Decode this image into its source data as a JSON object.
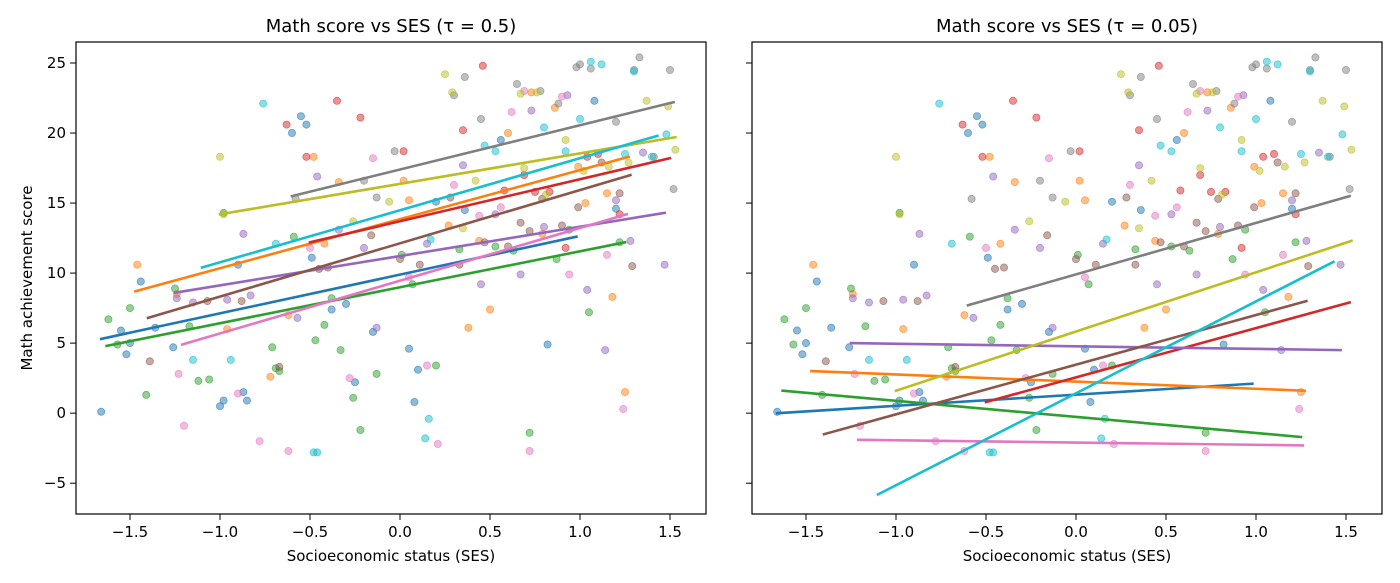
{
  "chart_data": [
    {
      "type": "scatter",
      "title": "Math score vs SES (τ = 0.5)",
      "xlabel": "Socioeconomic status (SES)",
      "ylabel": "Math achievement score",
      "xlim": [
        -1.8,
        1.7
      ],
      "ylim": [
        -7.2,
        26.5
      ],
      "xticks": [
        -1.5,
        -1.0,
        -0.5,
        0.0,
        0.5,
        1.0,
        1.5
      ],
      "xtick_labels": [
        "−1.5",
        "−1.0",
        "−0.5",
        "0.0",
        "0.5",
        "1.0",
        "1.5"
      ],
      "yticks": [
        -5,
        0,
        5,
        10,
        15,
        20,
        25
      ],
      "ytick_labels": [
        "−5",
        "0",
        "5",
        "10",
        "15",
        "20",
        "25"
      ],
      "grid": false,
      "series": [
        {
          "color": "#1f77b4",
          "x": [
            -1.66,
            -1.55,
            -1.52,
            -1.5,
            -1.44,
            -1.36,
            -1.26,
            -1.0,
            -0.98,
            -0.9,
            -0.87,
            -0.85,
            -0.6,
            -0.55,
            -0.52,
            -0.49,
            -0.38,
            -0.3,
            -0.25,
            -0.15,
            0.05,
            0.08,
            0.1,
            0.2,
            0.36,
            0.56,
            0.82,
            1.08,
            1.2
          ],
          "y": [
            0.1,
            5.9,
            4.2,
            5.0,
            9.4,
            6.1,
            4.7,
            0.5,
            0.9,
            10.6,
            1.5,
            0.9,
            20.0,
            21.2,
            20.6,
            11.1,
            7.4,
            7.8,
            2.2,
            5.8,
            4.6,
            0.8,
            3.1,
            15.1,
            14.5,
            19.5,
            4.9,
            22.3,
            14.6
          ],
          "line": {
            "x": [
              -1.66,
              0.98
            ],
            "y": [
              5.3,
              12.6
            ]
          }
        },
        {
          "color": "#ff7f0e",
          "x": [
            -1.46,
            -1.24,
            -0.96,
            -0.72,
            -0.62,
            -0.48,
            -0.42,
            -0.34,
            0.02,
            0.05,
            0.27,
            0.38,
            0.44,
            0.5,
            0.6,
            0.73,
            0.79,
            0.86,
            0.99,
            1.03,
            1.15,
            1.18,
            1.25
          ],
          "y": [
            10.6,
            8.5,
            6.0,
            2.6,
            7.0,
            18.3,
            12.1,
            16.5,
            16.6,
            15.2,
            13.4,
            6.1,
            12.3,
            7.4,
            20.0,
            22.9,
            12.8,
            21.8,
            17.6,
            15.0,
            15.7,
            8.3,
            1.5
          ],
          "line": {
            "x": [
              -1.47,
              1.27
            ],
            "y": [
              8.7,
              18.3
            ]
          }
        },
        {
          "color": "#2ca02c",
          "x": [
            -1.62,
            -1.57,
            -1.5,
            -1.41,
            -1.25,
            -1.17,
            -1.12,
            -1.06,
            -0.98,
            -0.71,
            -0.69,
            -0.67,
            -0.59,
            -0.47,
            -0.42,
            -0.38,
            -0.33,
            -0.26,
            -0.22,
            -0.13,
            0.01,
            0.07,
            0.2,
            0.33,
            0.53,
            0.63,
            0.72,
            0.87,
            0.94,
            1.05,
            1.22
          ],
          "y": [
            6.7,
            4.9,
            7.5,
            1.3,
            8.9,
            6.2,
            2.3,
            2.4,
            14.3,
            4.7,
            3.2,
            3.0,
            12.6,
            5.2,
            6.3,
            8.2,
            4.5,
            1.1,
            -1.2,
            2.8,
            11.3,
            9.2,
            3.4,
            11.7,
            11.9,
            11.6,
            -1.4,
            11.0,
            13.1,
            7.2,
            12.2
          ],
          "line": {
            "x": [
              -1.63,
              1.25
            ],
            "y": [
              4.8,
              12.2
            ]
          }
        },
        {
          "color": "#d62728",
          "x": [
            -0.63,
            -0.52,
            -0.35,
            -0.22,
            0.02,
            0.35,
            0.46,
            0.58,
            0.69,
            0.75,
            0.83,
            0.92,
            1.04,
            1.1,
            1.22
          ],
          "y": [
            20.6,
            18.3,
            22.3,
            21.1,
            18.7,
            20.2,
            24.8,
            15.9,
            17.0,
            15.8,
            15.8,
            11.8,
            18.3,
            18.5,
            14.2
          ],
          "line": {
            "x": [
              -0.5,
              1.5
            ],
            "y": [
              12.2,
              18.2
            ]
          }
        },
        {
          "color": "#9467bd",
          "x": [
            -1.24,
            -1.15,
            -0.96,
            -0.87,
            -0.83,
            -0.57,
            -0.46,
            -0.34,
            -0.2,
            -0.13,
            0.15,
            0.35,
            0.45,
            0.53,
            0.67,
            0.73,
            0.8,
            0.93,
            1.04,
            1.14,
            1.2,
            1.28,
            1.35,
            1.47
          ],
          "y": [
            8.2,
            7.9,
            8.1,
            12.8,
            8.4,
            6.8,
            16.9,
            13.1,
            11.8,
            6.1,
            12.1,
            17.7,
            9.2,
            14.2,
            9.9,
            21.6,
            13.3,
            22.7,
            8.8,
            4.5,
            15.2,
            12.3,
            18.6,
            10.6
          ],
          "line": {
            "x": [
              -1.25,
              1.47
            ],
            "y": [
              8.6,
              14.3
            ]
          }
        },
        {
          "color": "#8c564b",
          "x": [
            -1.39,
            -1.07,
            -0.88,
            -0.67,
            -0.45,
            -0.4,
            -0.16,
            0.0,
            0.11,
            0.28,
            0.33,
            0.47,
            0.6,
            0.67,
            0.72,
            0.79,
            0.9,
            0.99,
            1.12,
            1.22,
            1.29
          ],
          "y": [
            3.7,
            8.0,
            8.0,
            3.3,
            10.3,
            10.4,
            12.7,
            11.0,
            10.6,
            15.4,
            10.6,
            12.2,
            11.9,
            13.6,
            13.0,
            15.3,
            13.4,
            14.7,
            17.9,
            15.7,
            10.5
          ],
          "line": {
            "x": [
              -1.4,
              1.28
            ],
            "y": [
              6.8,
              17.0
            ]
          }
        },
        {
          "color": "#e377c2",
          "x": [
            -1.23,
            -1.2,
            -0.9,
            -0.78,
            -0.62,
            -0.5,
            -0.28,
            -0.15,
            0.05,
            0.15,
            0.21,
            0.3,
            0.44,
            0.56,
            0.62,
            0.69,
            0.72,
            0.9,
            0.94,
            1.15,
            1.24
          ],
          "y": [
            2.8,
            -0.9,
            1.4,
            -2.0,
            -2.7,
            11.8,
            2.5,
            18.2,
            9.7,
            3.4,
            -2.2,
            16.3,
            14.1,
            14.7,
            21.5,
            23.0,
            -2.7,
            22.6,
            9.9,
            11.3,
            0.3
          ],
          "line": {
            "x": [
              -1.21,
              1.26
            ],
            "y": [
              4.9,
              14.2
            ]
          }
        },
        {
          "color": "#7f7f7f",
          "x": [
            -0.58,
            -0.2,
            -0.13,
            -0.03,
            0.3,
            0.36,
            0.45,
            0.65,
            0.78,
            0.88,
            0.98,
            1.0,
            1.06,
            1.2,
            1.3,
            1.33,
            1.41,
            1.5,
            1.52
          ],
          "y": [
            15.3,
            16.6,
            15.4,
            18.7,
            22.7,
            24.0,
            21.0,
            23.5,
            23.0,
            22.1,
            24.7,
            24.9,
            24.6,
            20.8,
            24.5,
            25.4,
            18.3,
            24.5,
            16.0
          ],
          "line": {
            "x": [
              -0.6,
              1.52
            ],
            "y": [
              15.5,
              22.2
            ]
          }
        },
        {
          "color": "#bcbd22",
          "x": [
            -1.0,
            -0.98,
            -0.26,
            -0.06,
            0.25,
            0.29,
            0.35,
            0.42,
            0.67,
            0.69,
            0.76,
            0.81,
            0.92,
            1.02,
            1.16,
            1.27,
            1.37,
            1.49,
            1.53
          ],
          "y": [
            18.3,
            14.2,
            13.7,
            15.1,
            24.2,
            22.9,
            13.2,
            16.6,
            22.8,
            17.5,
            22.9,
            15.6,
            19.5,
            17.3,
            17.6,
            17.9,
            22.3,
            21.9,
            18.8
          ],
          "line": {
            "x": [
              -1.0,
              1.53
            ],
            "y": [
              14.2,
              19.7
            ]
          }
        },
        {
          "color": "#17becf",
          "x": [
            -1.15,
            -0.94,
            -0.76,
            -0.69,
            -0.48,
            -0.46,
            0.14,
            0.16,
            0.17,
            0.47,
            0.53,
            0.8,
            0.92,
            1.0,
            1.06,
            1.12,
            1.25,
            1.3,
            1.4,
            1.48
          ],
          "y": [
            3.8,
            3.8,
            22.1,
            12.1,
            -2.8,
            -2.8,
            -1.8,
            -0.4,
            12.4,
            19.1,
            18.7,
            20.4,
            18.7,
            21.0,
            25.1,
            24.9,
            18.5,
            24.4,
            18.3,
            19.9
          ],
          "line": {
            "x": [
              -1.1,
              1.43
            ],
            "y": [
              10.4,
              19.8
            ]
          }
        }
      ]
    },
    {
      "type": "scatter",
      "title": "Math score vs SES (τ = 0.05)",
      "xlabel": "Socioeconomic status (SES)",
      "xlim": [
        -1.8,
        1.7
      ],
      "ylim": [
        -7.2,
        26.5
      ],
      "xticks": [
        -1.5,
        -1.0,
        -0.5,
        0.0,
        0.5,
        1.0,
        1.5
      ],
      "xtick_labels": [
        "−1.5",
        "−1.0",
        "−0.5",
        "0.0",
        "0.5",
        "1.0",
        "1.5"
      ],
      "yticks": [
        -5,
        0,
        5,
        10,
        15,
        20,
        25
      ],
      "grid": false,
      "shared_points_with_left": true,
      "lines": [
        {
          "color": "#1f77b4",
          "x": [
            -1.66,
            0.98
          ],
          "y": [
            0.0,
            2.1
          ]
        },
        {
          "color": "#ff7f0e",
          "x": [
            -1.47,
            1.27
          ],
          "y": [
            3.0,
            1.6
          ]
        },
        {
          "color": "#2ca02c",
          "x": [
            -1.63,
            1.25
          ],
          "y": [
            1.6,
            -1.7
          ]
        },
        {
          "color": "#d62728",
          "x": [
            -0.5,
            1.52
          ],
          "y": [
            0.8,
            7.9
          ]
        },
        {
          "color": "#9467bd",
          "x": [
            -1.25,
            1.47
          ],
          "y": [
            5.0,
            4.5
          ]
        },
        {
          "color": "#8c564b",
          "x": [
            -1.4,
            1.28
          ],
          "y": [
            -1.5,
            8.0
          ]
        },
        {
          "color": "#e377c2",
          "x": [
            -1.21,
            1.26
          ],
          "y": [
            -1.9,
            -2.3
          ]
        },
        {
          "color": "#7f7f7f",
          "x": [
            -0.6,
            1.52
          ],
          "y": [
            7.7,
            15.5
          ]
        },
        {
          "color": "#bcbd22",
          "x": [
            -1.0,
            1.53
          ],
          "y": [
            1.6,
            12.3
          ]
        },
        {
          "color": "#17becf",
          "x": [
            -1.1,
            1.43
          ],
          "y": [
            -5.8,
            10.8
          ]
        }
      ]
    }
  ]
}
